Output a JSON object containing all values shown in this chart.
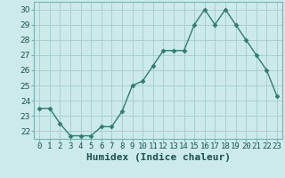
{
  "x": [
    0,
    1,
    2,
    3,
    4,
    5,
    6,
    7,
    8,
    9,
    10,
    11,
    12,
    13,
    14,
    15,
    16,
    17,
    18,
    19,
    20,
    21,
    22,
    23
  ],
  "y": [
    23.5,
    23.5,
    22.5,
    21.7,
    21.7,
    21.7,
    22.3,
    22.3,
    23.3,
    25.0,
    25.3,
    26.3,
    27.3,
    27.3,
    27.3,
    29.0,
    30.0,
    29.0,
    30.0,
    29.0,
    28.0,
    27.0,
    26.0,
    24.3
  ],
  "line_color": "#2e7d6e",
  "marker": "D",
  "marker_size": 2.5,
  "line_width": 1.0,
  "xlabel": "Humidex (Indice chaleur)",
  "ylim": [
    21.5,
    30.5
  ],
  "xlim": [
    -0.5,
    23.5
  ],
  "yticks": [
    22,
    23,
    24,
    25,
    26,
    27,
    28,
    29,
    30
  ],
  "xtick_labels": [
    "0",
    "1",
    "2",
    "3",
    "4",
    "5",
    "6",
    "7",
    "8",
    "9",
    "10",
    "11",
    "12",
    "13",
    "14",
    "15",
    "16",
    "17",
    "18",
    "19",
    "20",
    "21",
    "22",
    "23"
  ],
  "bg_color": "#cceaea",
  "grid_color": "#aacfcf",
  "xlabel_fontsize": 8,
  "tick_fontsize": 6.5,
  "spine_color": "#7ab0b0"
}
